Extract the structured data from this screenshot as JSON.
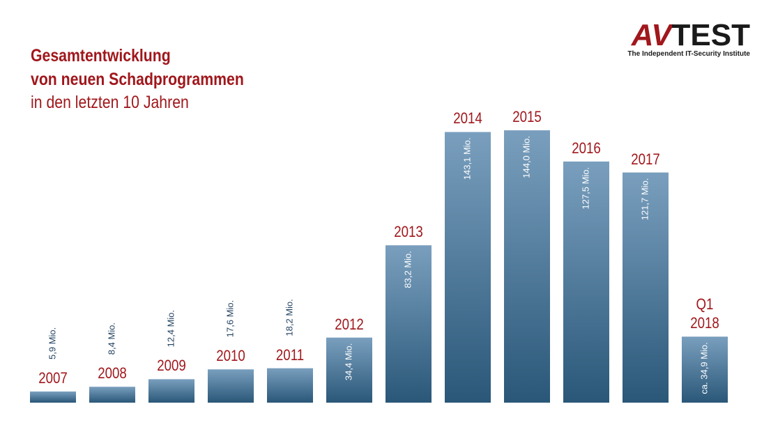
{
  "chart_data": {
    "type": "bar",
    "title": "Gesamtentwicklung",
    "title_line2": "von neuen Schadprogrammen",
    "subtitle": "in den letzten 10 Jahren",
    "categories": [
      "2007",
      "2008",
      "2009",
      "2010",
      "2011",
      "2012",
      "2013",
      "2014",
      "2015",
      "2016",
      "2017",
      "Q1\n2018"
    ],
    "values": [
      5.9,
      8.4,
      12.4,
      17.6,
      18.2,
      34.4,
      83.2,
      143.1,
      144.0,
      127.5,
      121.7,
      34.9
    ],
    "value_labels": [
      "5,9 Mio.",
      "8,4 Mio.",
      "12,4 Mio.",
      "17,6 Mio.",
      "18,2 Mio.",
      "34,4 Mio.",
      "83,2 Mio.",
      "143,1 Mio.",
      "144,0 Mio.",
      "127,5 Mio.",
      "121,7 Mio.",
      "ca. 34,9 Mio."
    ],
    "color": "#2f5f84"
  },
  "logo": {
    "mark": "AV",
    "name": "TEST",
    "tagline": "The Independent IT-Security Institute"
  }
}
